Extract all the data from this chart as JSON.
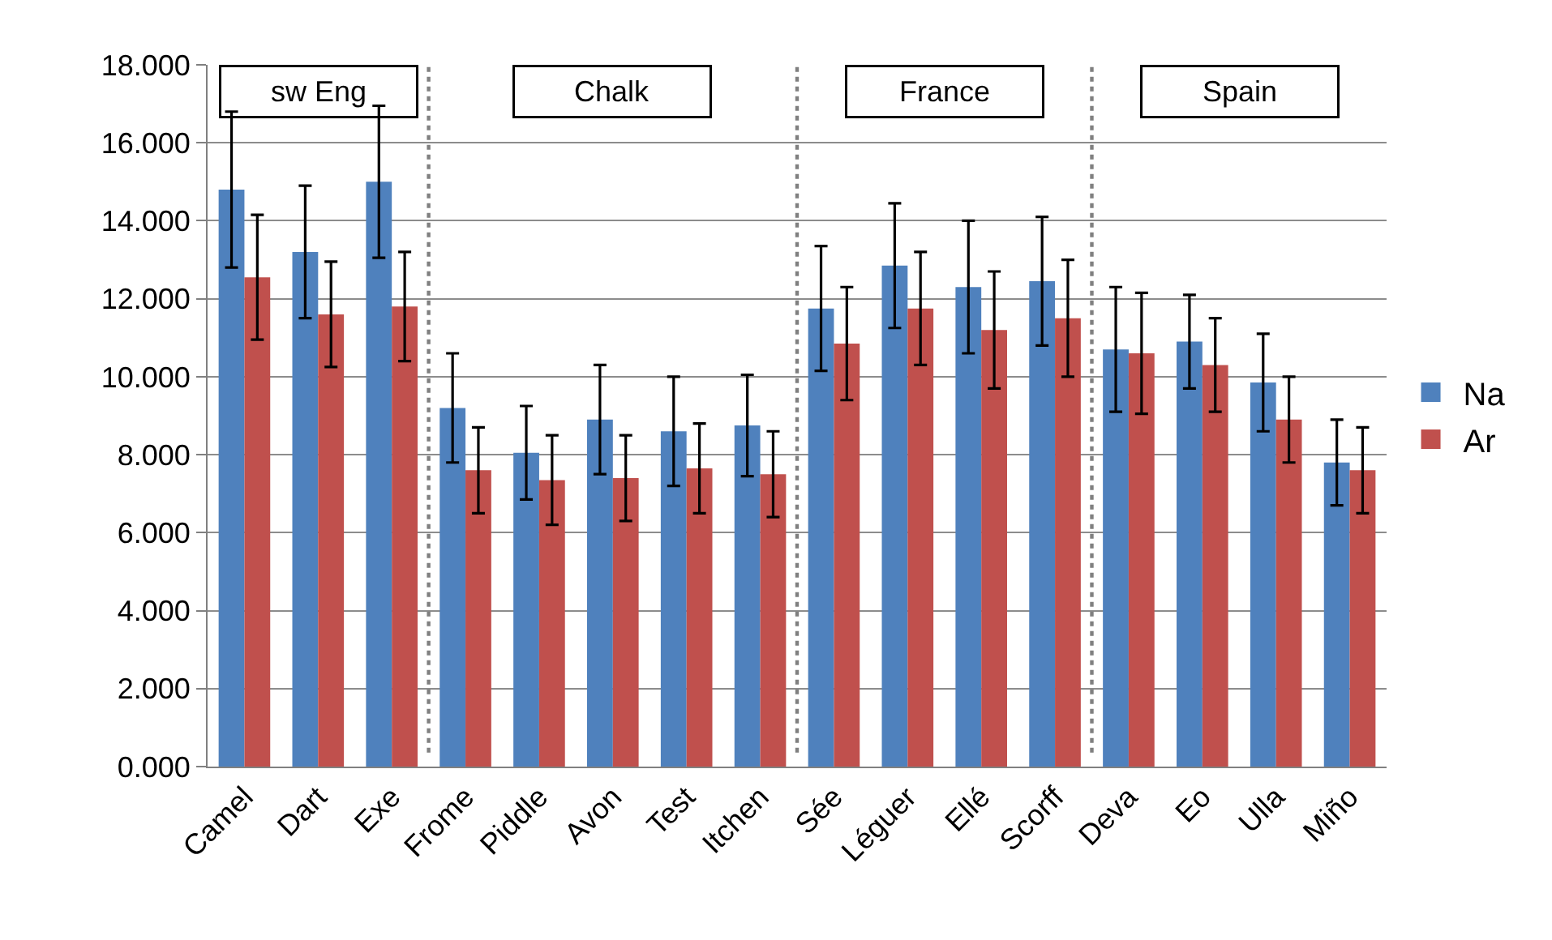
{
  "chart_data": {
    "type": "bar",
    "categories": [
      "Camel",
      "Dart",
      "Exe",
      "Frome",
      "Piddle",
      "Avon",
      "Test",
      "Itchen",
      "Sée",
      "Léguer",
      "Ellé",
      "Scorff",
      "Deva",
      "Eo",
      "Ulla",
      "Miño"
    ],
    "series": [
      {
        "name": "Na",
        "color": "#4f81bd",
        "values": [
          14.8,
          13.2,
          15.0,
          9.2,
          8.05,
          8.9,
          8.6,
          8.75,
          11.75,
          12.85,
          12.3,
          12.45,
          10.7,
          10.9,
          9.85,
          7.8
        ],
        "errors": [
          2.0,
          1.7,
          1.95,
          1.4,
          1.2,
          1.4,
          1.4,
          1.3,
          1.6,
          1.6,
          1.7,
          1.65,
          1.6,
          1.2,
          1.25,
          1.1
        ]
      },
      {
        "name": "Ar",
        "color": "#c0504d",
        "values": [
          12.55,
          11.6,
          11.8,
          7.6,
          7.35,
          7.4,
          7.65,
          7.5,
          10.85,
          11.75,
          11.2,
          11.5,
          10.6,
          10.3,
          8.9,
          7.6
        ],
        "errors": [
          1.6,
          1.35,
          1.4,
          1.1,
          1.15,
          1.1,
          1.15,
          1.1,
          1.45,
          1.45,
          1.5,
          1.5,
          1.55,
          1.2,
          1.1,
          1.1
        ]
      }
    ],
    "ylim": [
      0,
      18
    ],
    "yticks": [
      {
        "value": 0,
        "label": "0.000"
      },
      {
        "value": 2,
        "label": "2.000"
      },
      {
        "value": 4,
        "label": "4.000"
      },
      {
        "value": 6,
        "label": "6.000"
      },
      {
        "value": 8,
        "label": "8.000"
      },
      {
        "value": 10,
        "label": "10.000"
      },
      {
        "value": 12,
        "label": "12.000"
      },
      {
        "value": 14,
        "label": "14.000"
      },
      {
        "value": 16,
        "label": "16.000"
      },
      {
        "value": 18,
        "label": "18.000"
      }
    ],
    "annotations": [
      "sw Eng",
      "Chalk",
      "France",
      "Spain"
    ],
    "grid": "y",
    "legend": "right"
  }
}
